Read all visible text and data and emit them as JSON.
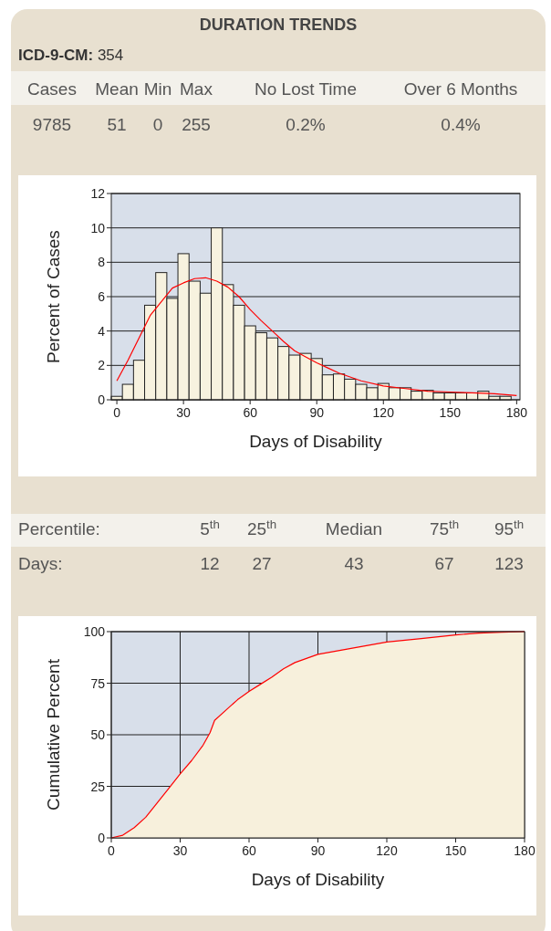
{
  "chart_data": [
    {
      "type": "other",
      "title": "DURATION TRENDS",
      "subtitle": "ICD-9-CM: 354",
      "categories": [
        "Cases",
        "Mean",
        "Min",
        "Max",
        "No Lost Time",
        "Over 6 Months"
      ],
      "value_labels": [
        "9785",
        "51",
        "0",
        "255",
        "0.2%",
        "0.4%"
      ]
    },
    {
      "type": "histogram",
      "xlabel": "Days of Disability",
      "ylabel": "Percent of Cases",
      "xlim": [
        -2.5,
        181.5
      ],
      "xticks": [
        0,
        30,
        60,
        90,
        120,
        150,
        180
      ],
      "ylim": [
        0,
        12
      ],
      "yticks": [
        0,
        2,
        4,
        6,
        8,
        10,
        12
      ],
      "grid": "y",
      "series": [
        {
          "type": "histogram",
          "color": "#f7f2df",
          "bins": [
            -2.5,
            2.5,
            7.5,
            12.5,
            17.5,
            22.5,
            27.5,
            32.5,
            37.5,
            42.5,
            47.5,
            52.5,
            57.5,
            62.5,
            67.5,
            72.5,
            77.5,
            82.5,
            87.5,
            92.5,
            97.5,
            102.5,
            107.5,
            112.5,
            117.5,
            122.5,
            127.5,
            132.5,
            137.5,
            142.5,
            147.5,
            152.5,
            157.5,
            162.5,
            167.5,
            172.5,
            177.5
          ],
          "values": [
            0.2,
            0.9,
            2.3,
            5.5,
            7.4,
            5.9,
            8.5,
            6.9,
            6.2,
            10,
            6.7,
            5.5,
            4.3,
            3.9,
            3.6,
            3.1,
            2.6,
            2.7,
            2.4,
            1.45,
            1.5,
            1.2,
            0.9,
            0.7,
            0.95,
            0.7,
            0.7,
            0.5,
            0.55,
            0.4,
            0.4,
            0.4,
            0.4,
            0.5,
            0.2,
            0.2
          ]
        },
        {
          "type": "line",
          "color": "#ff0000",
          "x": [
            0,
            5,
            10,
            15,
            20,
            25,
            30,
            35,
            40,
            45,
            50,
            55,
            60,
            65,
            70,
            75,
            80,
            85,
            90,
            95,
            100,
            110,
            120,
            130,
            140,
            150,
            160,
            170,
            180
          ],
          "values": [
            1.1,
            2.3,
            3.6,
            4.9,
            5.7,
            6.5,
            6.8,
            7.05,
            7.1,
            6.9,
            6.55,
            6.0,
            5.25,
            4.6,
            4.0,
            3.4,
            2.85,
            2.5,
            2.15,
            1.85,
            1.55,
            1.1,
            0.8,
            0.65,
            0.5,
            0.45,
            0.4,
            0.35,
            0.25
          ]
        }
      ]
    },
    {
      "type": "other",
      "categories": [
        "5$^{th}$",
        "25$^{th}$",
        "Median",
        "75$^{th}$",
        "95$^{th}$"
      ],
      "value_labels": [
        "12",
        "27",
        "43",
        "67",
        "123"
      ],
      "annotations": [
        "Percentile:",
        "Days:"
      ]
    },
    {
      "type": "area",
      "xlabel": "Days of Disability",
      "ylabel": "Cumulative Percent",
      "xlim": [
        0,
        180
      ],
      "xticks": [
        0,
        30,
        60,
        90,
        120,
        150,
        180
      ],
      "ylim": [
        0,
        100
      ],
      "yticks": [
        0,
        25,
        50,
        75,
        100
      ],
      "grid": true,
      "series": [
        {
          "type": "area",
          "color": "#f7f0dc",
          "x": [
            0,
            5,
            10,
            15,
            20,
            25,
            30,
            35,
            40,
            43,
            45,
            50,
            55,
            60,
            65,
            70,
            75,
            80,
            85,
            90,
            100,
            110,
            120,
            135,
            150,
            160,
            170,
            180
          ],
          "values": [
            0,
            1.3,
            5,
            10,
            17,
            24,
            31,
            37.5,
            45,
            51,
            57,
            62,
            67,
            71,
            74.5,
            78,
            82,
            85,
            87,
            89,
            91,
            93,
            95,
            96.6,
            98.4,
            99.3,
            99.7,
            100
          ]
        }
      ]
    }
  ]
}
